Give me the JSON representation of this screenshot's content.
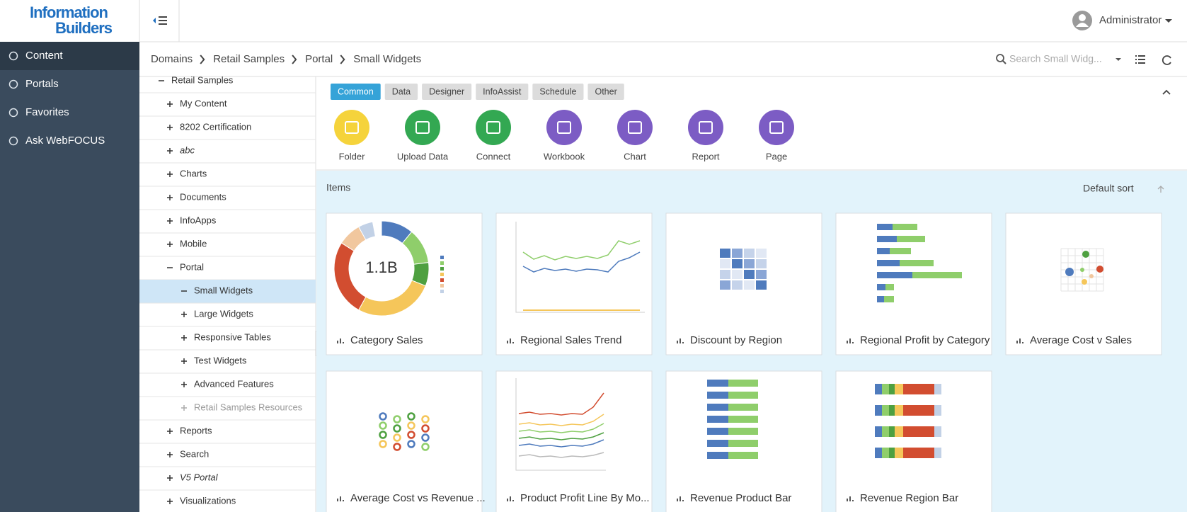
{
  "header": {
    "logo": [
      "Information",
      "Builders"
    ],
    "user": "Administrator"
  },
  "sidebar": {
    "items": [
      "Content",
      "Portals",
      "Favorites",
      "Ask WebFOCUS"
    ],
    "active": 0
  },
  "breadcrumb": [
    "Domains",
    "Retail Samples",
    "Portal",
    "Small Widgets"
  ],
  "search": {
    "placeholder": "Search Small Widg..."
  },
  "tree": [
    {
      "label": "Retail Samples",
      "level": 0,
      "expanded": true
    },
    {
      "label": "My Content",
      "level": 1,
      "expanded": false
    },
    {
      "label": "8202 Certification",
      "level": 1,
      "expanded": false
    },
    {
      "label": "abc",
      "level": 1,
      "expanded": false,
      "italic": true
    },
    {
      "label": "Charts",
      "level": 1,
      "expanded": false
    },
    {
      "label": "Documents",
      "level": 1,
      "expanded": false
    },
    {
      "label": "InfoApps",
      "level": 1,
      "expanded": false
    },
    {
      "label": "Mobile",
      "level": 1,
      "expanded": false
    },
    {
      "label": "Portal",
      "level": 1,
      "expanded": true
    },
    {
      "label": "Small Widgets",
      "level": 2,
      "expanded": true,
      "selected": true
    },
    {
      "label": "Large Widgets",
      "level": 2,
      "expanded": false
    },
    {
      "label": "Responsive Tables",
      "level": 2,
      "expanded": false
    },
    {
      "label": "Test Widgets",
      "level": 2,
      "expanded": false
    },
    {
      "label": "Advanced Features",
      "level": 2,
      "expanded": false
    },
    {
      "label": "Retail Samples Resources",
      "level": 2,
      "expanded": false,
      "muted": true
    },
    {
      "label": "Reports",
      "level": 1,
      "expanded": false
    },
    {
      "label": "Search",
      "level": 1,
      "expanded": false
    },
    {
      "label": "V5 Portal",
      "level": 1,
      "expanded": false,
      "italic": true
    },
    {
      "label": "Visualizations",
      "level": 1,
      "expanded": false
    }
  ],
  "tabs": {
    "labels": [
      "Common",
      "Data",
      "Designer",
      "InfoAssist",
      "Schedule",
      "Other"
    ],
    "active": 0
  },
  "create": [
    {
      "label": "Folder",
      "color": "#f5d33b"
    },
    {
      "label": "Upload Data",
      "color": "#33a852"
    },
    {
      "label": "Connect",
      "color": "#33a852"
    },
    {
      "label": "Workbook",
      "color": "#7c5cc4"
    },
    {
      "label": "Chart",
      "color": "#7c5cc4"
    },
    {
      "label": "Report",
      "color": "#7c5cc4"
    },
    {
      "label": "Page",
      "color": "#7c5cc4"
    }
  ],
  "items": {
    "heading": "Items",
    "sort": "Default sort",
    "cards": [
      {
        "title": "Category Sales",
        "thumb": "donut",
        "center": "1.1B"
      },
      {
        "title": "Regional Sales Trend",
        "thumb": "lines"
      },
      {
        "title": "Discount by Region",
        "thumb": "grid"
      },
      {
        "title": "Regional Profit by Category",
        "thumb": "hbar"
      },
      {
        "title": "Average Cost v Sales",
        "thumb": "scatter"
      },
      {
        "title": "Average Cost vs Revenue ...",
        "thumb": "bubbles"
      },
      {
        "title": "Product Profit Line By Mo...",
        "thumb": "multiline"
      },
      {
        "title": "Revenue Product Bar",
        "thumb": "stack2"
      },
      {
        "title": "Revenue Region Bar",
        "thumb": "stack7"
      }
    ]
  }
}
